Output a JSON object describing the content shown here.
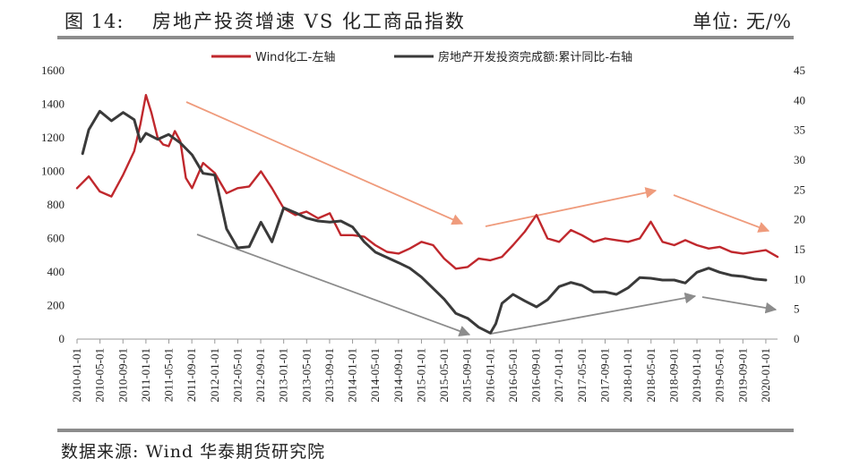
{
  "header": {
    "figure_number": "图 14:",
    "title": "房地产投资增速 VS 化工商品指数",
    "unit": "单位:  无/%"
  },
  "footer": {
    "source": "数据来源:  Wind  华泰期货研究院"
  },
  "colors": {
    "chem": "#c0282d",
    "realestate": "#3a3a3a",
    "arrow_salmon": "#ef9b7c",
    "arrow_gray": "#8c8c8c",
    "rule": "#8c8c8c"
  },
  "chart_data": {
    "type": "line",
    "x_ticks": [
      "2010-01-01",
      "2010-05-01",
      "2010-09-01",
      "2011-01-01",
      "2011-05-01",
      "2011-09-01",
      "2012-01-01",
      "2012-05-01",
      "2012-09-01",
      "2013-01-01",
      "2013-05-01",
      "2013-09-01",
      "2014-01-01",
      "2014-05-01",
      "2014-09-01",
      "2015-01-01",
      "2015-05-01",
      "2015-09-01",
      "2016-01-01",
      "2016-05-01",
      "2016-09-01",
      "2017-01-01",
      "2017-05-01",
      "2017-09-01",
      "2018-01-01",
      "2018-05-01",
      "2018-09-01",
      "2019-01-01",
      "2019-05-01",
      "2019-09-01",
      "2020-01-01"
    ],
    "y_left": {
      "min": 0,
      "max": 1600,
      "step": 200,
      "ticks": [
        "0",
        "200",
        "400",
        "600",
        "800",
        "1000",
        "1200",
        "1400",
        "1600"
      ]
    },
    "y_right": {
      "min": 0,
      "max": 45,
      "step": 5,
      "ticks": [
        "0",
        "5",
        "10",
        "15",
        "20",
        "25",
        "30",
        "35",
        "40",
        "45"
      ]
    },
    "legend": [
      "Wind化工-左轴",
      "房地产开发投资完成额:累计同比-右轴"
    ],
    "series": [
      {
        "name": "Wind化工-左轴",
        "axis": "left",
        "color": "#c0282d",
        "x": [
          2010.0,
          2010.17,
          2010.33,
          2010.5,
          2010.67,
          2010.83,
          2010.92,
          2011.0,
          2011.08,
          2011.17,
          2011.25,
          2011.33,
          2011.42,
          2011.5,
          2011.58,
          2011.67,
          2011.83,
          2012.0,
          2012.17,
          2012.33,
          2012.5,
          2012.67,
          2012.83,
          2013.0,
          2013.17,
          2013.33,
          2013.5,
          2013.67,
          2013.83,
          2014.0,
          2014.17,
          2014.33,
          2014.5,
          2014.67,
          2014.83,
          2015.0,
          2015.17,
          2015.33,
          2015.5,
          2015.67,
          2015.83,
          2016.0,
          2016.17,
          2016.33,
          2016.5,
          2016.67,
          2016.83,
          2017.0,
          2017.17,
          2017.33,
          2017.5,
          2017.67,
          2017.83,
          2018.0,
          2018.17,
          2018.33,
          2018.5,
          2018.67,
          2018.83,
          2019.0,
          2019.17,
          2019.33,
          2019.5,
          2019.67,
          2019.83,
          2020.0,
          2020.17
        ],
        "values": [
          900,
          970,
          880,
          850,
          980,
          1120,
          1280,
          1455,
          1350,
          1200,
          1160,
          1150,
          1240,
          1180,
          960,
          900,
          1050,
          990,
          870,
          900,
          910,
          1000,
          900,
          780,
          740,
          760,
          720,
          750,
          620,
          620,
          610,
          560,
          520,
          510,
          540,
          580,
          560,
          480,
          420,
          430,
          480,
          470,
          490,
          560,
          640,
          740,
          600,
          580,
          650,
          620,
          580,
          600,
          590,
          580,
          600,
          700,
          580,
          560,
          590,
          560,
          540,
          550,
          520,
          510,
          520,
          530,
          490
        ]
      },
      {
        "name": "房地产开发投资完成额:累计同比-右轴",
        "axis": "right",
        "color": "#3a3a3a",
        "x": [
          2010.08,
          2010.17,
          2010.33,
          2010.5,
          2010.67,
          2010.83,
          2010.92,
          2011.0,
          2011.17,
          2011.33,
          2011.5,
          2011.67,
          2011.83,
          2012.0,
          2012.17,
          2012.33,
          2012.5,
          2012.67,
          2012.83,
          2013.0,
          2013.17,
          2013.33,
          2013.5,
          2013.67,
          2013.83,
          2014.0,
          2014.17,
          2014.33,
          2014.5,
          2014.67,
          2014.83,
          2015.0,
          2015.17,
          2015.33,
          2015.5,
          2015.67,
          2015.83,
          2016.0,
          2016.08,
          2016.17,
          2016.33,
          2016.5,
          2016.67,
          2016.83,
          2017.0,
          2017.17,
          2017.33,
          2017.5,
          2017.67,
          2017.83,
          2018.0,
          2018.17,
          2018.33,
          2018.5,
          2018.67,
          2018.83,
          2019.0,
          2019.17,
          2019.33,
          2019.5,
          2019.67,
          2019.83,
          2020.0
        ],
        "values": [
          31.1,
          35.1,
          38.2,
          36.6,
          38.0,
          36.8,
          33.1,
          34.5,
          33.5,
          34.3,
          32.9,
          30.9,
          27.8,
          27.5,
          18.5,
          15.3,
          15.5,
          19.6,
          16.3,
          22.0,
          21.2,
          20.3,
          19.8,
          19.6,
          19.8,
          18.8,
          16.3,
          14.6,
          13.7,
          12.8,
          11.9,
          10.4,
          8.5,
          6.7,
          4.3,
          3.5,
          2.0,
          1.0,
          2.6,
          6.0,
          7.5,
          6.4,
          5.4,
          6.6,
          8.8,
          9.5,
          9.0,
          7.9,
          7.9,
          7.5,
          8.6,
          10.3,
          10.2,
          9.9,
          9.9,
          9.4,
          11.2,
          11.9,
          11.2,
          10.7,
          10.5,
          10.1,
          9.9
        ]
      }
    ],
    "grid": false
  }
}
